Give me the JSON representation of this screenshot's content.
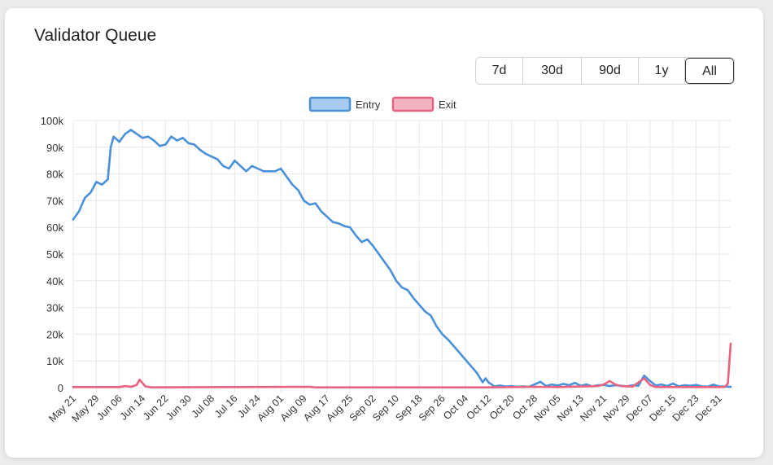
{
  "header": {
    "title": "Validator Queue"
  },
  "range_buttons": [
    {
      "label": "7d"
    },
    {
      "label": "30d"
    },
    {
      "label": "90d"
    },
    {
      "label": "1y"
    },
    {
      "label": "All",
      "active": true
    }
  ],
  "colors": {
    "entry": "#4a90d9",
    "entry_fill": "#a8cbf0",
    "exit": "#e8637e",
    "exit_fill": "#f4b3c1",
    "grid": "#e8e8e8"
  },
  "chart_data": {
    "type": "line",
    "legend": {
      "position": "top-center",
      "entries": [
        "Entry",
        "Exit"
      ]
    },
    "grid": true,
    "ylim": [
      0,
      100000
    ],
    "yticks": [
      0,
      10000,
      20000,
      30000,
      40000,
      50000,
      60000,
      70000,
      80000,
      90000,
      100000
    ],
    "ytick_labels": [
      "0",
      "10k",
      "20k",
      "30k",
      "40k",
      "50k",
      "60k",
      "70k",
      "80k",
      "90k",
      "100k"
    ],
    "xtick_labels": [
      "May 21",
      "May 29",
      "Jun 06",
      "Jun 14",
      "Jun 22",
      "Jun 30",
      "Jul 08",
      "Jul 16",
      "Jul 24",
      "Aug 01",
      "Aug 09",
      "Aug 17",
      "Aug 25",
      "Sep 02",
      "Sep 10",
      "Sep 18",
      "Sep 26",
      "Oct 04",
      "Oct 12",
      "Oct 20",
      "Oct 28",
      "Nov 05",
      "Nov 13",
      "Nov 21",
      "Nov 29",
      "Dec 07",
      "Dec 15",
      "Dec 23",
      "Dec 31"
    ],
    "x_start": "May 21",
    "x_end": "Jan 04",
    "series": [
      {
        "name": "Entry",
        "points": [
          [
            "May 21",
            63000
          ],
          [
            "May 23",
            66000
          ],
          [
            "May 25",
            71000
          ],
          [
            "May 27",
            73000
          ],
          [
            "May 29",
            77000
          ],
          [
            "May 31",
            76000
          ],
          [
            "Jun 02",
            78000
          ],
          [
            "Jun 03",
            90000
          ],
          [
            "Jun 04",
            94000
          ],
          [
            "Jun 06",
            92000
          ],
          [
            "Jun 08",
            95000
          ],
          [
            "Jun 10",
            96500
          ],
          [
            "Jun 12",
            95000
          ],
          [
            "Jun 14",
            93500
          ],
          [
            "Jun 16",
            94000
          ],
          [
            "Jun 18",
            92500
          ],
          [
            "Jun 20",
            90500
          ],
          [
            "Jun 22",
            91000
          ],
          [
            "Jun 24",
            94000
          ],
          [
            "Jun 26",
            92500
          ],
          [
            "Jun 28",
            93500
          ],
          [
            "Jun 30",
            91500
          ],
          [
            "Jul 02",
            91000
          ],
          [
            "Jul 04",
            89000
          ],
          [
            "Jul 06",
            87500
          ],
          [
            "Jul 08",
            86500
          ],
          [
            "Jul 10",
            85500
          ],
          [
            "Jul 12",
            83000
          ],
          [
            "Jul 14",
            82000
          ],
          [
            "Jul 16",
            85000
          ],
          [
            "Jul 18",
            83000
          ],
          [
            "Jul 20",
            81000
          ],
          [
            "Jul 22",
            83000
          ],
          [
            "Jul 24",
            82000
          ],
          [
            "Jul 26",
            81000
          ],
          [
            "Jul 28",
            81000
          ],
          [
            "Jul 30",
            81000
          ],
          [
            "Aug 01",
            82000
          ],
          [
            "Aug 03",
            79000
          ],
          [
            "Aug 05",
            76000
          ],
          [
            "Aug 07",
            74000
          ],
          [
            "Aug 09",
            70000
          ],
          [
            "Aug 11",
            68500
          ],
          [
            "Aug 13",
            69000
          ],
          [
            "Aug 15",
            66000
          ],
          [
            "Aug 17",
            64000
          ],
          [
            "Aug 19",
            62000
          ],
          [
            "Aug 21",
            61500
          ],
          [
            "Aug 23",
            60500
          ],
          [
            "Aug 25",
            60000
          ],
          [
            "Aug 27",
            57000
          ],
          [
            "Aug 29",
            54500
          ],
          [
            "Aug 31",
            55500
          ],
          [
            "Sep 02",
            53000
          ],
          [
            "Sep 04",
            50000
          ],
          [
            "Sep 06",
            47000
          ],
          [
            "Sep 08",
            44000
          ],
          [
            "Sep 10",
            40000
          ],
          [
            "Sep 12",
            37500
          ],
          [
            "Sep 14",
            36500
          ],
          [
            "Sep 16",
            33500
          ],
          [
            "Sep 18",
            31000
          ],
          [
            "Sep 20",
            28500
          ],
          [
            "Sep 22",
            27000
          ],
          [
            "Sep 24",
            23000
          ],
          [
            "Sep 26",
            20000
          ],
          [
            "Sep 28",
            18000
          ],
          [
            "Sep 30",
            15500
          ],
          [
            "Oct 02",
            13000
          ],
          [
            "Oct 04",
            10500
          ],
          [
            "Oct 06",
            8000
          ],
          [
            "Oct 08",
            5500
          ],
          [
            "Oct 10",
            2000
          ],
          [
            "Oct 11",
            3500
          ],
          [
            "Oct 12",
            2000
          ],
          [
            "Oct 14",
            500
          ],
          [
            "Oct 16",
            800
          ],
          [
            "Oct 18",
            400
          ],
          [
            "Oct 20",
            600
          ],
          [
            "Oct 22",
            300
          ],
          [
            "Oct 24",
            500
          ],
          [
            "Oct 26",
            300
          ],
          [
            "Oct 28",
            1200
          ],
          [
            "Oct 30",
            2200
          ],
          [
            "Nov 01",
            600
          ],
          [
            "Nov 03",
            1200
          ],
          [
            "Nov 05",
            800
          ],
          [
            "Nov 07",
            1400
          ],
          [
            "Nov 09",
            900
          ],
          [
            "Nov 11",
            1800
          ],
          [
            "Nov 13",
            700
          ],
          [
            "Nov 15",
            1200
          ],
          [
            "Nov 17",
            500
          ],
          [
            "Nov 19",
            900
          ],
          [
            "Nov 21",
            1000
          ],
          [
            "Nov 23",
            600
          ],
          [
            "Nov 25",
            900
          ],
          [
            "Nov 27",
            700
          ],
          [
            "Nov 29",
            500
          ],
          [
            "Dec 01",
            900
          ],
          [
            "Dec 03",
            700
          ],
          [
            "Dec 05",
            4500
          ],
          [
            "Dec 07",
            2500
          ],
          [
            "Dec 09",
            800
          ],
          [
            "Dec 11",
            1200
          ],
          [
            "Dec 13",
            600
          ],
          [
            "Dec 15",
            1500
          ],
          [
            "Dec 17",
            500
          ],
          [
            "Dec 19",
            900
          ],
          [
            "Dec 21",
            700
          ],
          [
            "Dec 23",
            1000
          ],
          [
            "Dec 25",
            500
          ],
          [
            "Dec 27",
            400
          ],
          [
            "Dec 29",
            1100
          ],
          [
            "Dec 31",
            500
          ],
          [
            "Jan 02",
            400
          ],
          [
            "Jan 04",
            300
          ]
        ]
      },
      {
        "name": "Exit",
        "points": [
          [
            "May 21",
            200
          ],
          [
            "Jun 06",
            200
          ],
          [
            "Jun 08",
            600
          ],
          [
            "Jun 10",
            300
          ],
          [
            "Jun 12",
            1000
          ],
          [
            "Jun 13",
            3000
          ],
          [
            "Jun 15",
            500
          ],
          [
            "Jun 17",
            100
          ],
          [
            "Aug 11",
            300
          ],
          [
            "Aug 13",
            100
          ],
          [
            "Oct 12",
            100
          ],
          [
            "Oct 28",
            300
          ],
          [
            "Nov 05",
            200
          ],
          [
            "Nov 19",
            600
          ],
          [
            "Nov 21",
            1200
          ],
          [
            "Nov 23",
            2500
          ],
          [
            "Nov 25",
            1200
          ],
          [
            "Nov 27",
            600
          ],
          [
            "Dec 01",
            400
          ],
          [
            "Dec 05",
            3500
          ],
          [
            "Dec 07",
            1000
          ],
          [
            "Dec 09",
            200
          ],
          [
            "Dec 31",
            200
          ],
          [
            "Jan 02",
            300
          ],
          [
            "Jan 03",
            1500
          ],
          [
            "Jan 04",
            16500
          ]
        ]
      }
    ]
  }
}
